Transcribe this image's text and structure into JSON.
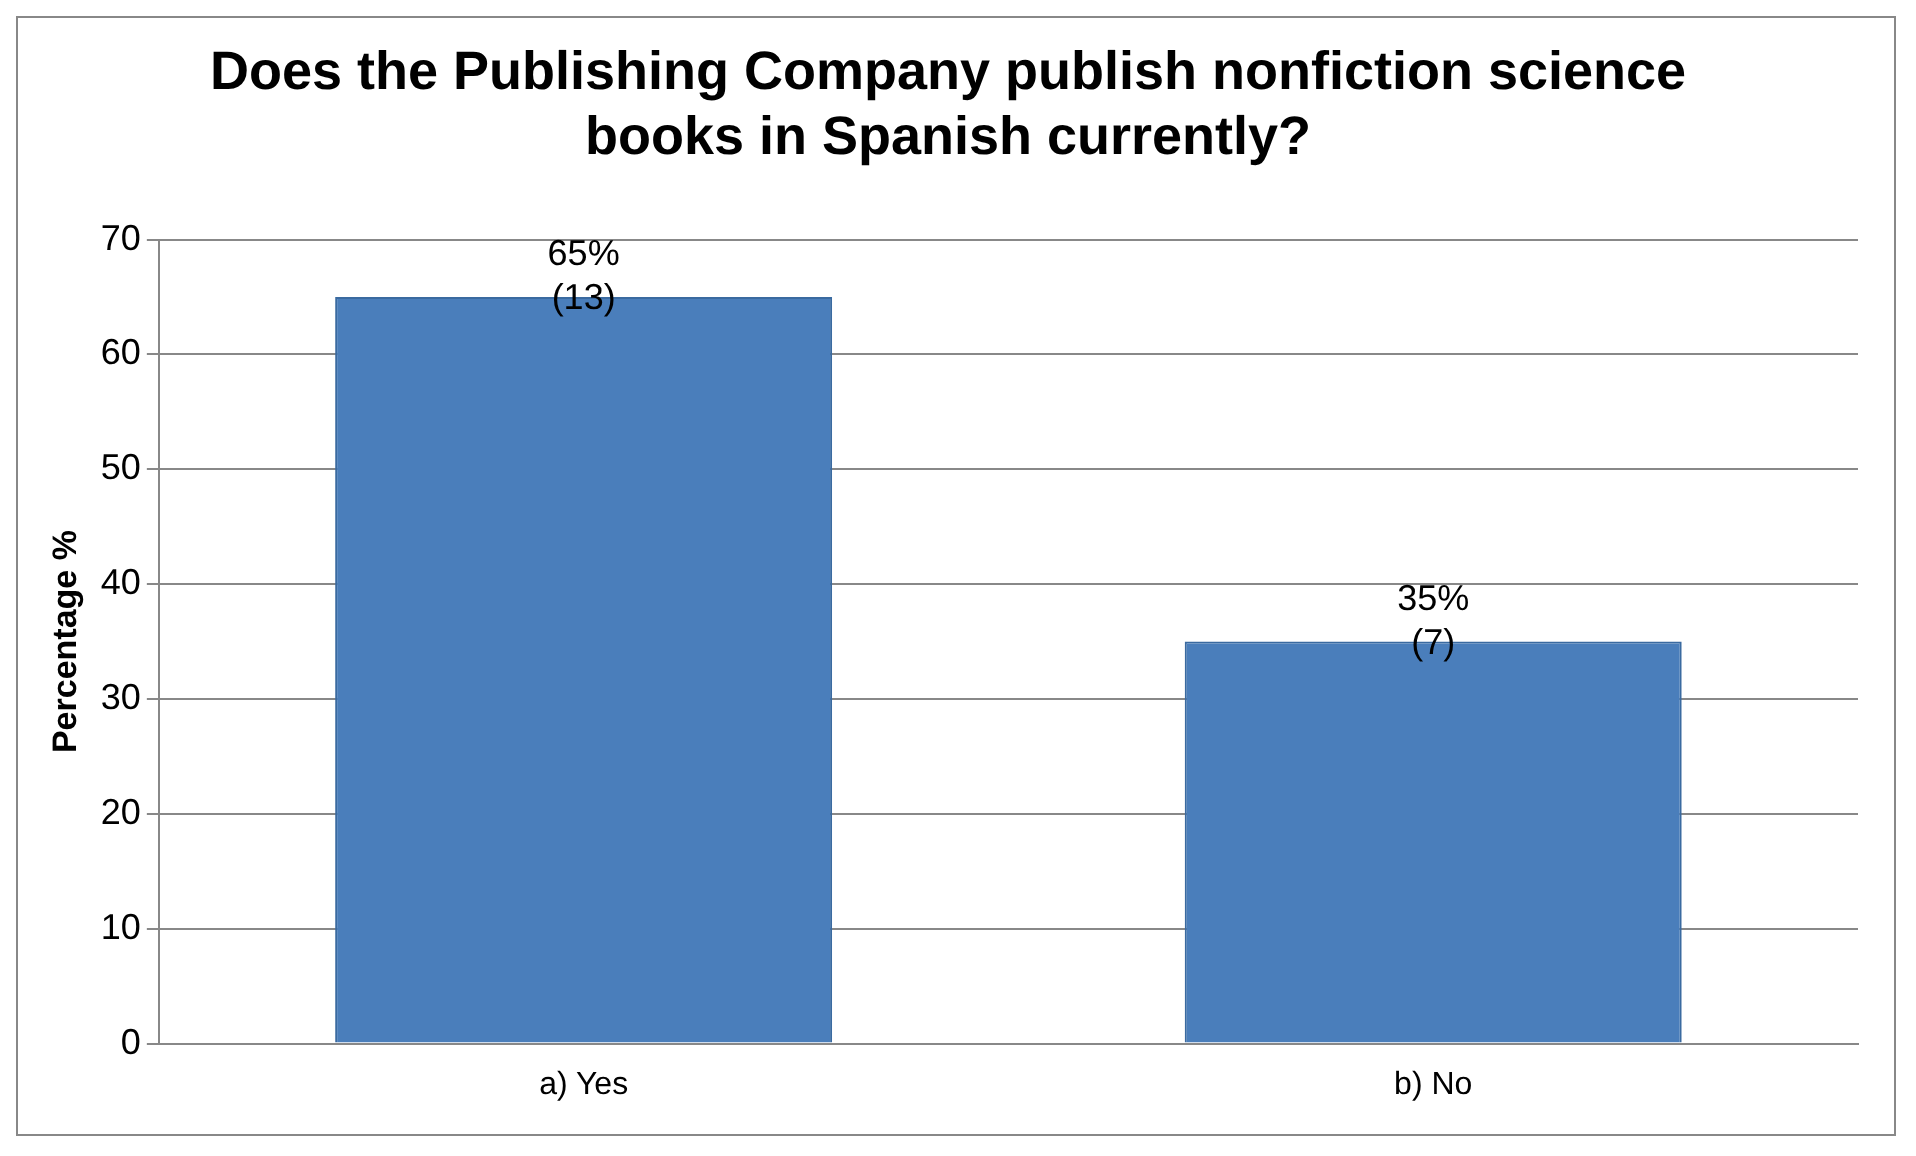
{
  "chart_data": {
    "type": "bar",
    "title": "Does the Publishing Company publish nonfiction science books in Spanish currently?",
    "ylabel": "Percentage %",
    "categories": [
      "a) Yes",
      "b) No"
    ],
    "values": [
      65,
      35
    ],
    "color": "#4a7ebb",
    "value_labels": [
      "65%\n(13)",
      "35%\n(7)"
    ],
    "ylim": [
      0,
      70
    ],
    "yticks": [
      0,
      10,
      20,
      30,
      40,
      50,
      60,
      70
    ],
    "grid": "y"
  }
}
